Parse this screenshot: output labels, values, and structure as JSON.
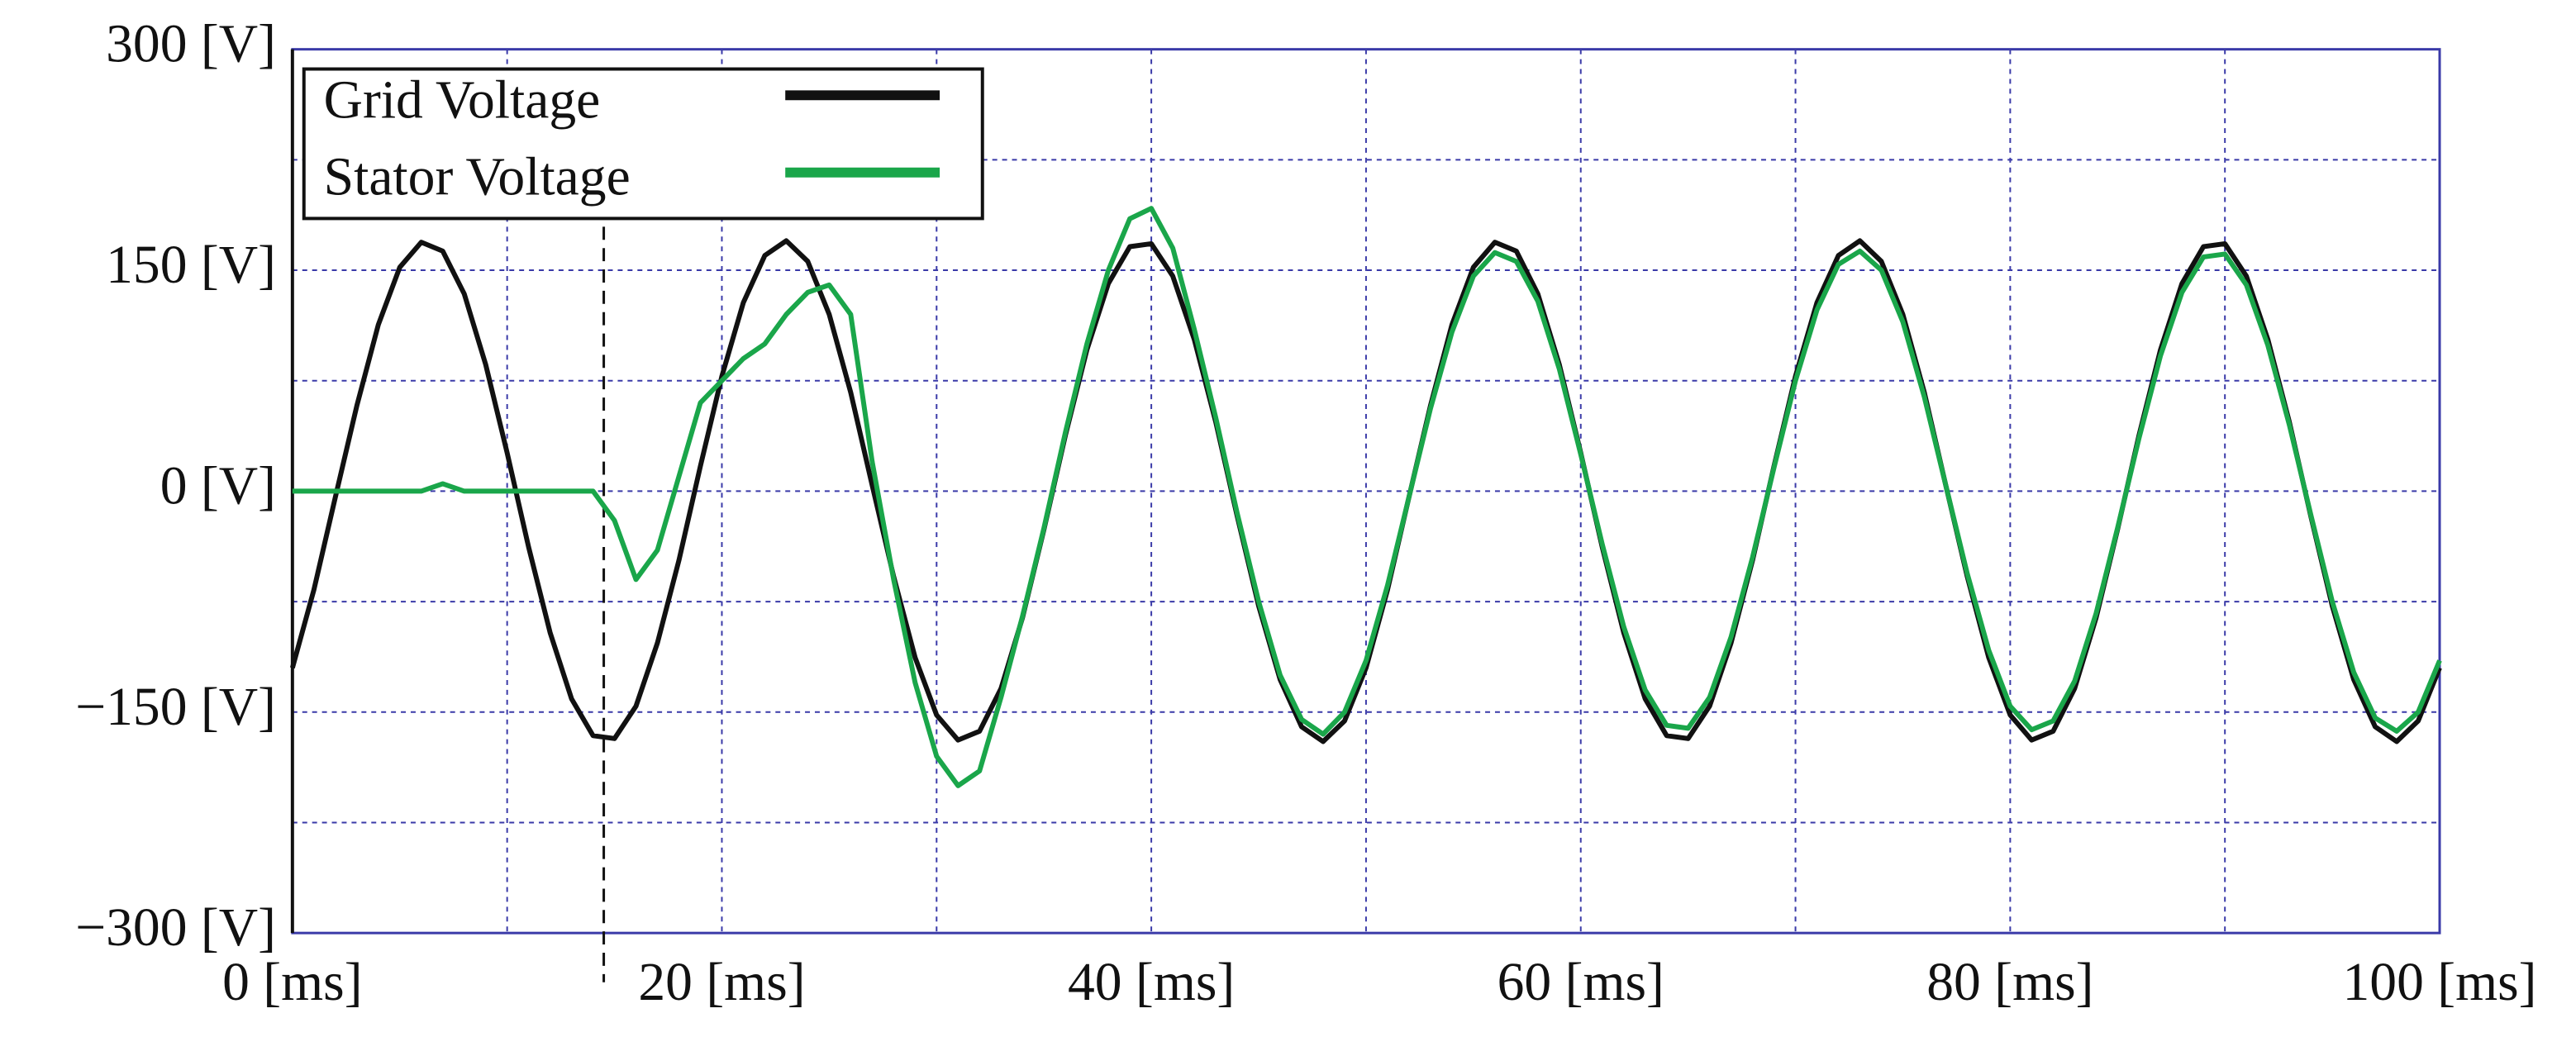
{
  "chart_data": {
    "type": "line",
    "x": [
      0,
      1,
      2,
      3,
      4,
      5,
      6,
      7,
      8,
      9,
      10,
      11,
      12,
      13,
      14,
      15,
      16,
      17,
      18,
      19,
      20,
      21,
      22,
      23,
      24,
      25,
      26,
      27,
      28,
      29,
      30,
      31,
      32,
      33,
      34,
      35,
      36,
      37,
      38,
      39,
      40,
      41,
      42,
      43,
      44,
      45,
      46,
      47,
      48,
      49,
      50,
      51,
      52,
      53,
      54,
      55,
      56,
      57,
      58,
      59,
      60,
      61,
      62,
      63,
      64,
      65,
      66,
      67,
      68,
      69,
      70,
      71,
      72,
      73,
      74,
      75,
      76,
      77,
      78,
      79,
      80,
      81,
      82,
      83,
      84,
      85,
      86,
      87,
      88,
      89,
      90,
      91,
      92,
      93,
      94,
      95,
      96,
      97,
      98,
      99,
      100
    ],
    "series": [
      {
        "name": "Grid Voltage",
        "color": "#111111",
        "values": [
          -120,
          -67,
          -4,
          58,
          113,
          152,
          169,
          163,
          134,
          86,
          26,
          -38,
          -96,
          -141,
          -166,
          -168,
          -146,
          -103,
          -47,
          17,
          78,
          128,
          160,
          170,
          156,
          120,
          67,
          4,
          -58,
          -113,
          -152,
          -169,
          -163,
          -134,
          -86,
          -26,
          38,
          96,
          141,
          166,
          168,
          146,
          103,
          47,
          -17,
          -78,
          -128,
          -160,
          -170,
          -156,
          -120,
          -67,
          -4,
          58,
          113,
          152,
          169,
          163,
          134,
          86,
          26,
          -38,
          -96,
          -141,
          -166,
          -168,
          -146,
          -103,
          -47,
          17,
          78,
          128,
          160,
          170,
          156,
          120,
          67,
          4,
          -58,
          -113,
          -152,
          -169,
          -163,
          -134,
          -86,
          -26,
          38,
          96,
          141,
          166,
          168,
          146,
          103,
          47,
          -17,
          -78,
          -128,
          -160,
          -170,
          -156,
          -120
        ]
      },
      {
        "name": "Stator Voltage",
        "color": "#1aa64a",
        "values": [
          0,
          0,
          0,
          0,
          0,
          0,
          0,
          5,
          0,
          0,
          0,
          0,
          0,
          0,
          0,
          -20,
          -60,
          -40,
          10,
          60,
          75,
          90,
          100,
          120,
          135,
          140,
          120,
          20,
          -60,
          -130,
          -180,
          -200,
          -190,
          -140,
          -85,
          -25,
          40,
          100,
          150,
          185,
          192,
          165,
          110,
          50,
          -15,
          -75,
          -125,
          -155,
          -165,
          -150,
          -115,
          -64,
          -4,
          56,
          108,
          146,
          162,
          156,
          129,
          83,
          25,
          -36,
          -92,
          -135,
          -159,
          -161,
          -140,
          -99,
          -45,
          16,
          75,
          123,
          154,
          163,
          150,
          115,
          64,
          4,
          -56,
          -108,
          -146,
          -162,
          -156,
          -129,
          -83,
          -25,
          36,
          92,
          135,
          159,
          161,
          140,
          99,
          45,
          -16,
          -75,
          -123,
          -154,
          -163,
          -150,
          -115
        ]
      }
    ],
    "xlim": [
      0,
      100
    ],
    "xticks": [
      {
        "value": 0,
        "label": "0 [ms]"
      },
      {
        "value": 20,
        "label": "20 [ms]"
      },
      {
        "value": 40,
        "label": "40 [ms]"
      },
      {
        "value": 60,
        "label": "60 [ms]"
      },
      {
        "value": 80,
        "label": "80 [ms]"
      },
      {
        "value": 100,
        "label": "100 [ms]"
      }
    ],
    "xgrid_minor": [
      10,
      30,
      50,
      70,
      90
    ],
    "ylim": [
      -300,
      300
    ],
    "yticks": [
      {
        "value": 300,
        "label": "300 [V]"
      },
      {
        "value": 150,
        "label": "150 [V]"
      },
      {
        "value": 0,
        "label": "0 [V]"
      },
      {
        "value": -150,
        "label": "−150 [V]"
      },
      {
        "value": -300,
        "label": "−300 [V]"
      }
    ],
    "ygrid_minor": [
      225,
      75,
      -75,
      -225
    ],
    "event_x": 14.5,
    "grid": true,
    "legend": "upper left"
  }
}
